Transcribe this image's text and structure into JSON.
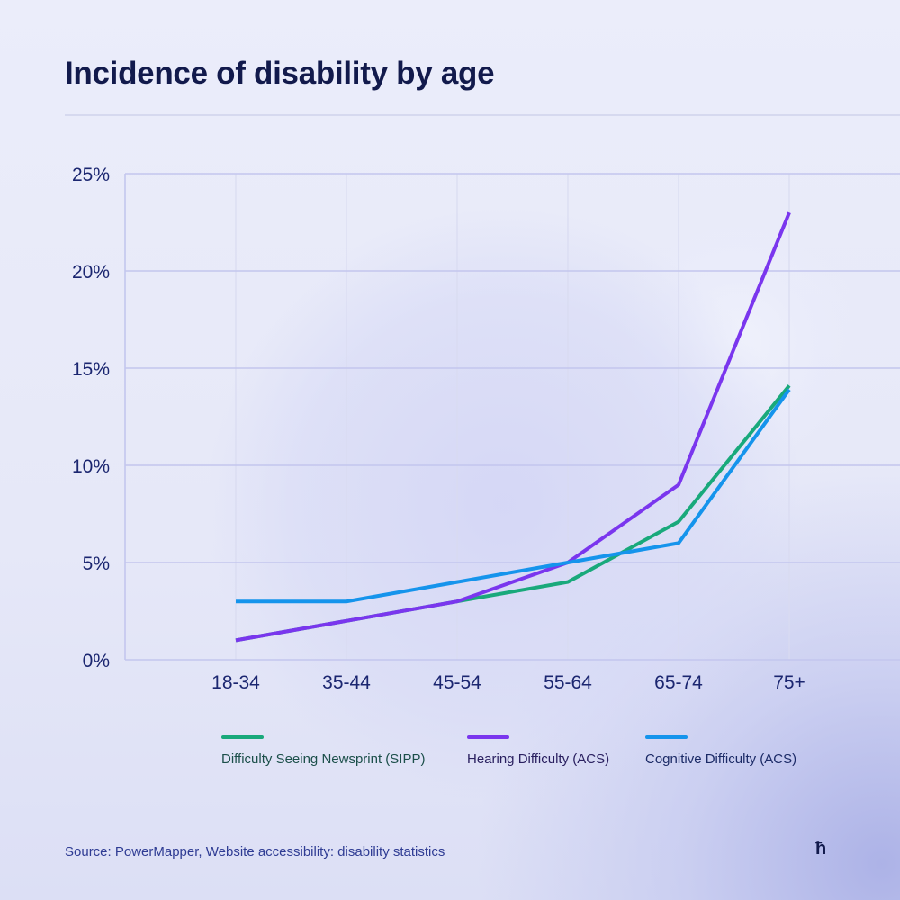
{
  "header": {
    "title": "Incidence of disability by age"
  },
  "chart_data": {
    "type": "line",
    "title": "Incidence of disability by age",
    "xlabel": "",
    "ylabel": "",
    "categories": [
      "18-34",
      "35-44",
      "45-54",
      "55-64",
      "65-74",
      "75+"
    ],
    "ylim": [
      0,
      25
    ],
    "yticks": [
      0,
      5,
      10,
      15,
      20,
      25
    ],
    "ytick_labels": [
      "0%",
      "5%",
      "10%",
      "15%",
      "20%",
      "25%"
    ],
    "grid": true,
    "legend_position": "bottom",
    "series": [
      {
        "name": "Difficulty Seeing Newsprint (SIPP)",
        "color": "#19a97b",
        "label_color": "#1c4f4a",
        "values": [
          1,
          2,
          3,
          4,
          7.1,
          14.1
        ]
      },
      {
        "name": "Hearing Difficulty (ACS)",
        "color": "#7a36ee",
        "label_color": "#2a2060",
        "values": [
          1,
          2,
          3,
          5,
          9,
          23
        ]
      },
      {
        "name": "Cognitive Difficulty (ACS)",
        "color": "#1594ec",
        "label_color": "#1b2a66",
        "values": [
          3,
          3,
          4,
          5,
          6,
          13.9
        ]
      }
    ]
  },
  "footer": {
    "source": "Source: PowerMapper, Website accessibility: disability statistics",
    "logo": "ћ"
  }
}
